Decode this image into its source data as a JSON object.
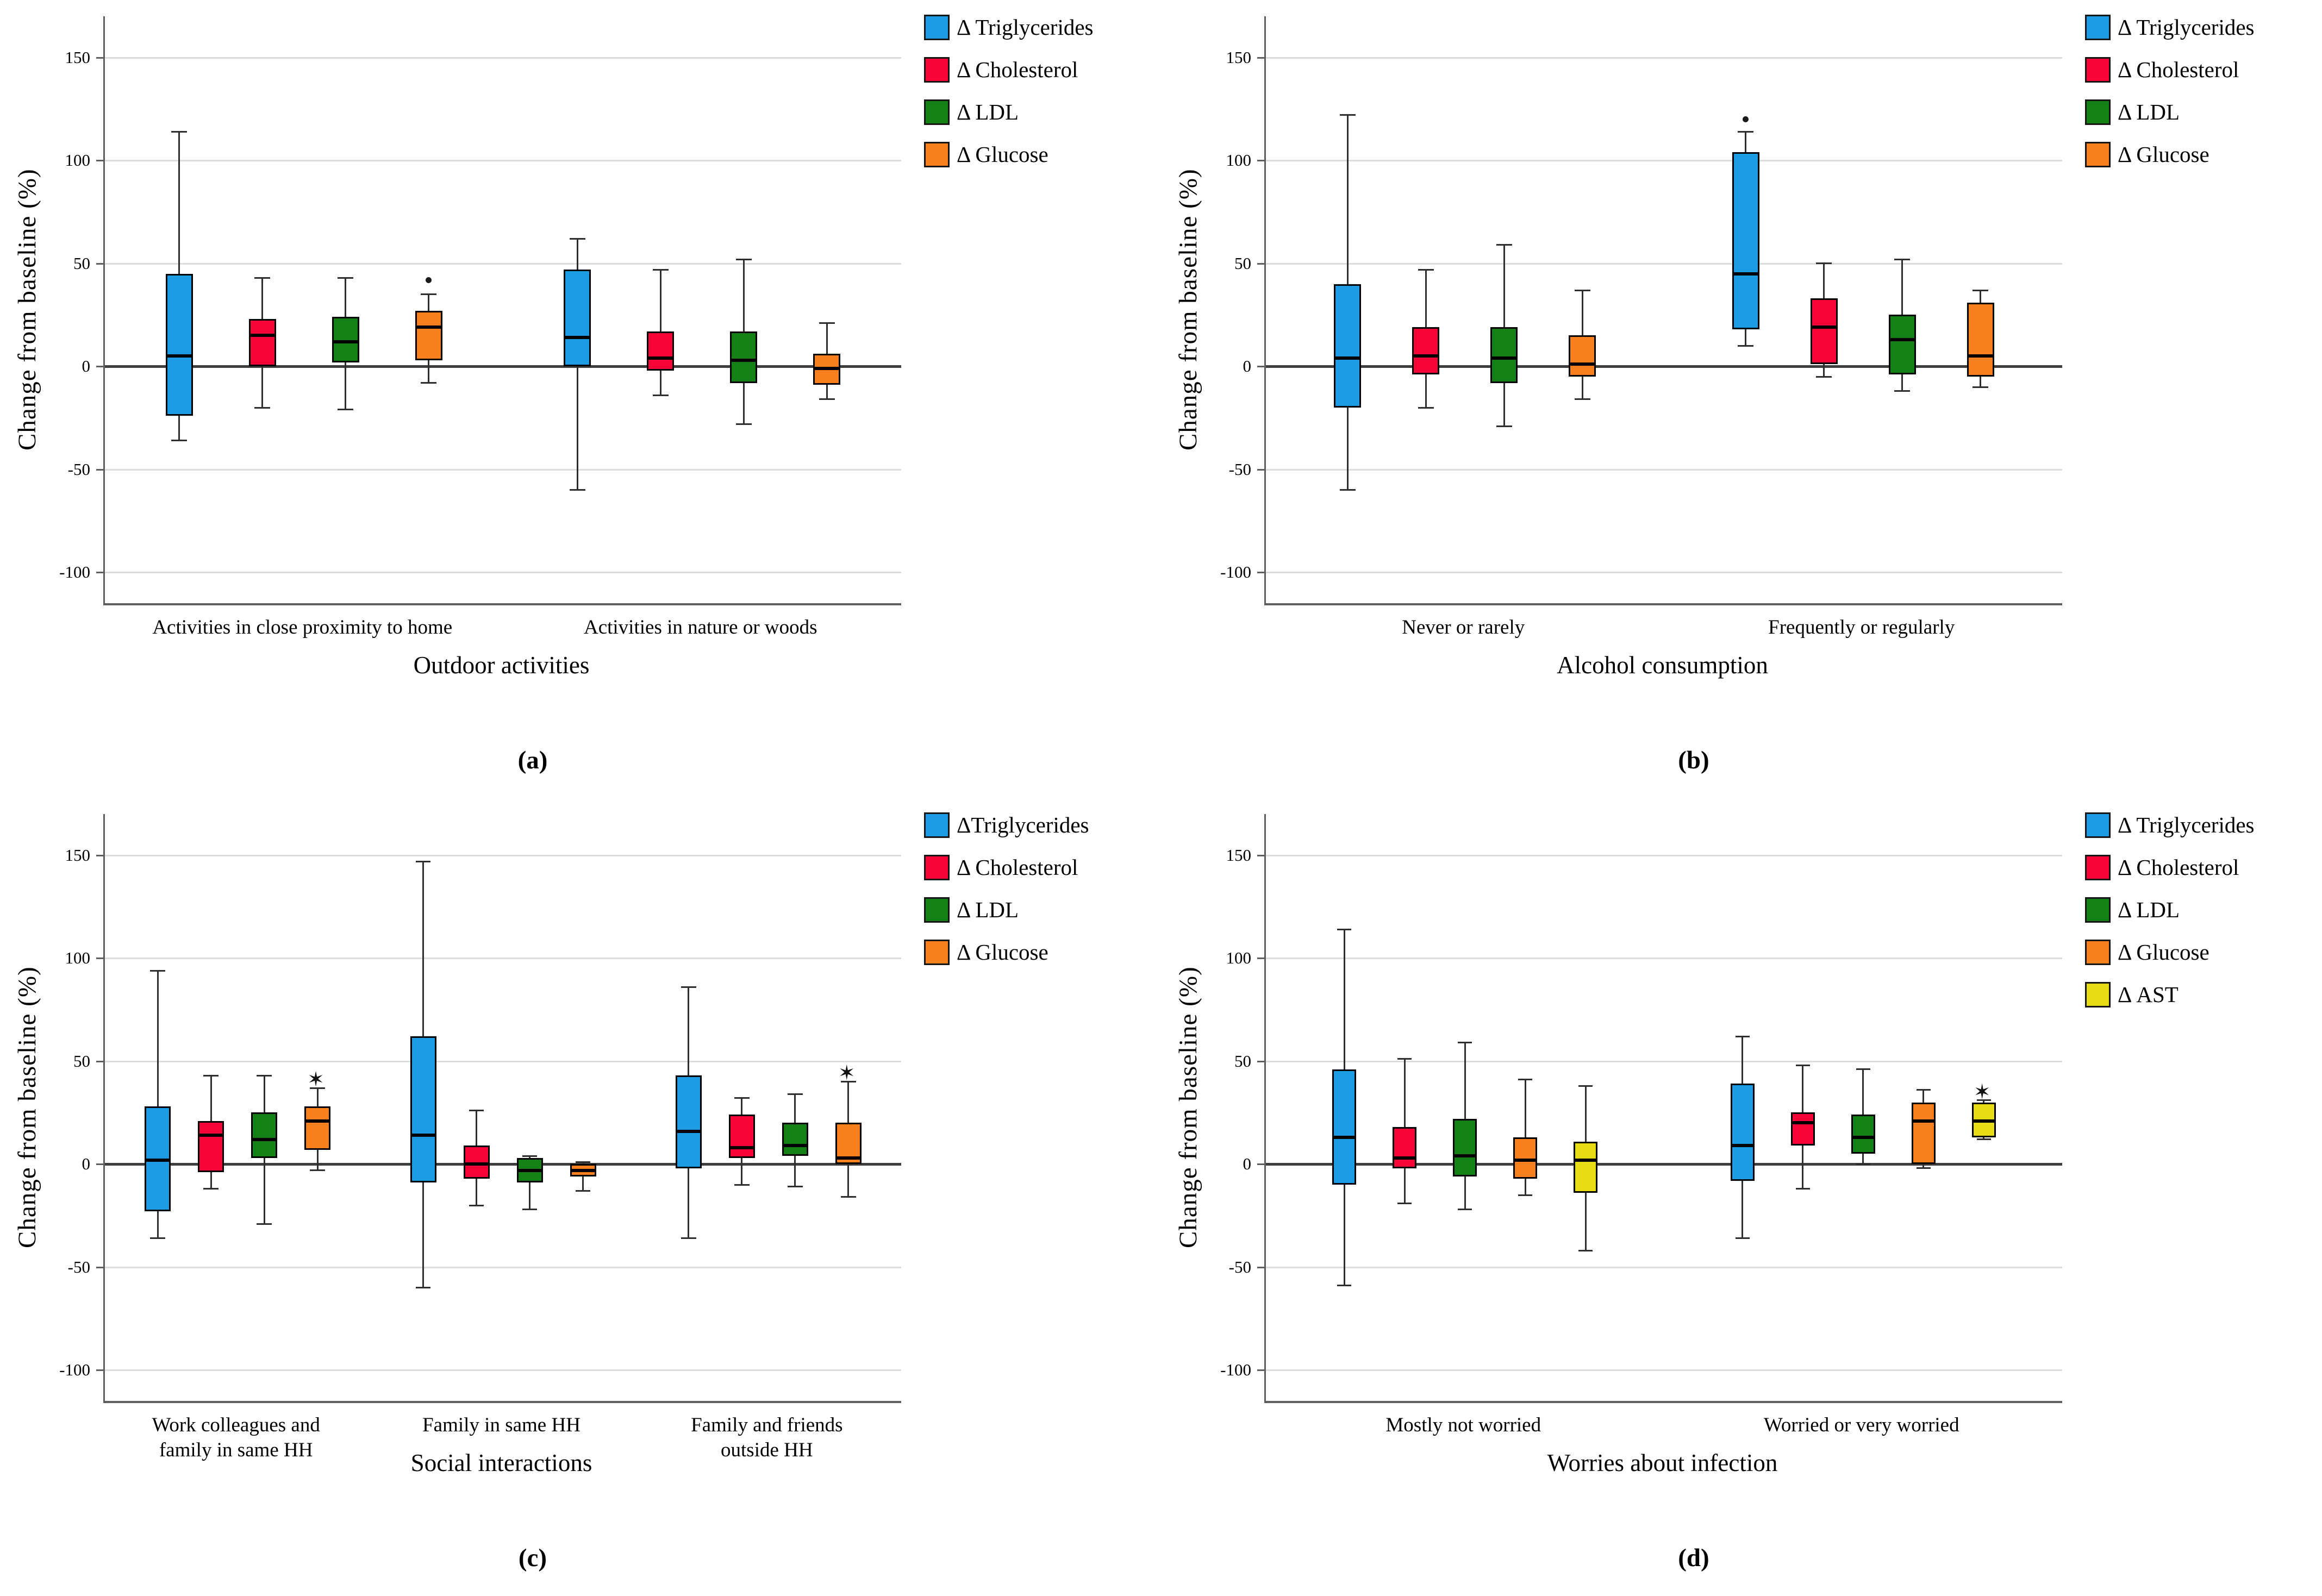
{
  "figure": {
    "background_color": "#ffffff",
    "baseline_color": "#3e3e3e",
    "gridline_color": "#dcdcdc"
  },
  "chart_data": [
    {
      "id": "a",
      "type": "boxplot",
      "caption": "(a)",
      "xlabel": "Outdoor activities",
      "ylabel": "Change from baseline (%)",
      "yticks": [
        150,
        100,
        50,
        0,
        -50,
        -100
      ],
      "ylim": [
        -115,
        170
      ],
      "grid": true,
      "legend_position": "right",
      "categories": [
        "Activities in close proximity to home",
        "Activities in nature or woods"
      ],
      "series": [
        {
          "name": "Δ Triglycerides",
          "key": "triglycerides",
          "color": "#1d9ce5",
          "boxes": [
            {
              "low": -36,
              "q1": -24,
              "median": 5,
              "q3": 45,
              "high": 114
            },
            {
              "low": -60,
              "q1": 0,
              "median": 14,
              "q3": 47,
              "high": 62
            }
          ]
        },
        {
          "name": "Δ Cholesterol",
          "key": "cholesterol",
          "color": "#f80538",
          "boxes": [
            {
              "low": -20,
              "q1": 0,
              "median": 15,
              "q3": 23,
              "high": 43
            },
            {
              "low": -14,
              "q1": -2,
              "median": 4,
              "q3": 17,
              "high": 47
            }
          ]
        },
        {
          "name": "Δ LDL",
          "key": "ldl",
          "color": "#158015",
          "boxes": [
            {
              "low": -21,
              "q1": 2,
              "median": 12,
              "q3": 24,
              "high": 43
            },
            {
              "low": -28,
              "q1": -8,
              "median": 3,
              "q3": 17,
              "high": 52
            }
          ]
        },
        {
          "name": "Δ Glucose",
          "key": "glucose",
          "color": "#f8801e",
          "boxes": [
            {
              "low": -8,
              "q1": 3,
              "median": 19,
              "q3": 27,
              "high": 35,
              "outliers": [
                {
                  "value": 42,
                  "marker": "dot"
                }
              ]
            },
            {
              "low": -16,
              "q1": -9,
              "median": -1,
              "q3": 6,
              "high": 21
            }
          ]
        }
      ]
    },
    {
      "id": "b",
      "type": "boxplot",
      "caption": "(b)",
      "xlabel": "Alcohol consumption",
      "ylabel": "Change from baseline (%)",
      "yticks": [
        150,
        100,
        50,
        0,
        -50,
        -100
      ],
      "ylim": [
        -115,
        170
      ],
      "grid": true,
      "legend_position": "right",
      "categories": [
        "Never or rarely",
        "Frequently or regularly"
      ],
      "series": [
        {
          "name": "Δ Triglycerides",
          "key": "triglycerides",
          "color": "#1d9ce5",
          "boxes": [
            {
              "low": -60,
              "q1": -20,
              "median": 4,
              "q3": 40,
              "high": 122
            },
            {
              "low": 10,
              "q1": 18,
              "median": 45,
              "q3": 104,
              "high": 114,
              "outliers": [
                {
                  "value": 120,
                  "marker": "dot"
                }
              ]
            }
          ]
        },
        {
          "name": "Δ Cholesterol",
          "key": "cholesterol",
          "color": "#f80538",
          "boxes": [
            {
              "low": -20,
              "q1": -4,
              "median": 5,
              "q3": 19,
              "high": 47
            },
            {
              "low": -5,
              "q1": 1,
              "median": 19,
              "q3": 33,
              "high": 50
            }
          ]
        },
        {
          "name": "Δ LDL",
          "key": "ldl",
          "color": "#158015",
          "boxes": [
            {
              "low": -29,
              "q1": -8,
              "median": 4,
              "q3": 19,
              "high": 59
            },
            {
              "low": -12,
              "q1": -4,
              "median": 13,
              "q3": 25,
              "high": 52
            }
          ]
        },
        {
          "name": "Δ Glucose",
          "key": "glucose",
          "color": "#f8801e",
          "boxes": [
            {
              "low": -16,
              "q1": -5,
              "median": 1,
              "q3": 15,
              "high": 37
            },
            {
              "low": -10,
              "q1": -5,
              "median": 5,
              "q3": 31,
              "high": 37
            }
          ]
        }
      ]
    },
    {
      "id": "c",
      "type": "boxplot",
      "caption": "(c)",
      "xlabel": "Social interactions",
      "ylabel": "Change from baseline (%)",
      "yticks": [
        150,
        100,
        50,
        0,
        -50,
        -100
      ],
      "ylim": [
        -115,
        170
      ],
      "grid": true,
      "legend_position": "right",
      "categories": [
        "Work colleagues and\nfamily in same HH",
        "Family in same HH",
        "Family and friends\noutside HH"
      ],
      "series": [
        {
          "name": "ΔTriglycerides",
          "key": "triglycerides",
          "color": "#1d9ce5",
          "boxes": [
            {
              "low": -36,
              "q1": -23,
              "median": 2,
              "q3": 28,
              "high": 94
            },
            {
              "low": -60,
              "q1": -9,
              "median": 14,
              "q3": 62,
              "high": 147
            },
            {
              "low": -36,
              "q1": -2,
              "median": 16,
              "q3": 43,
              "high": 86
            }
          ]
        },
        {
          "name": "Δ Cholesterol",
          "key": "cholesterol",
          "color": "#f80538",
          "boxes": [
            {
              "low": -12,
              "q1": -4,
              "median": 14,
              "q3": 21,
              "high": 43
            },
            {
              "low": -20,
              "q1": -7,
              "median": 0,
              "q3": 9,
              "high": 26
            },
            {
              "low": -10,
              "q1": 3,
              "median": 8,
              "q3": 24,
              "high": 32
            }
          ]
        },
        {
          "name": "Δ LDL",
          "key": "ldl",
          "color": "#158015",
          "boxes": [
            {
              "low": -29,
              "q1": 3,
              "median": 12,
              "q3": 25,
              "high": 43
            },
            {
              "low": -22,
              "q1": -9,
              "median": -3,
              "q3": 3,
              "high": 4
            },
            {
              "low": -11,
              "q1": 4,
              "median": 9,
              "q3": 20,
              "high": 34
            }
          ]
        },
        {
          "name": "Δ Glucose",
          "key": "glucose",
          "color": "#f8801e",
          "boxes": [
            {
              "low": -3,
              "q1": 7,
              "median": 21,
              "q3": 28,
              "high": 37,
              "outliers": [
                {
                  "value": 41,
                  "marker": "star"
                }
              ]
            },
            {
              "low": -13,
              "q1": -6,
              "median": -3,
              "q3": 0,
              "high": 1
            },
            {
              "low": -16,
              "q1": 0,
              "median": 3,
              "q3": 20,
              "high": 40,
              "outliers": [
                {
                  "value": 44,
                  "marker": "star"
                }
              ]
            }
          ]
        }
      ]
    },
    {
      "id": "d",
      "type": "boxplot",
      "caption": "(d)",
      "xlabel": "Worries about infection",
      "ylabel": "Change from baseline (%)",
      "yticks": [
        150,
        100,
        50,
        0,
        -50,
        -100
      ],
      "ylim": [
        -115,
        170
      ],
      "grid": true,
      "legend_position": "right",
      "categories": [
        "Mostly not worried",
        "Worried or very worried"
      ],
      "series": [
        {
          "name": "Δ Triglycerides",
          "key": "triglycerides",
          "color": "#1d9ce5",
          "boxes": [
            {
              "low": -59,
              "q1": -10,
              "median": 13,
              "q3": 46,
              "high": 114
            },
            {
              "low": -36,
              "q1": -8,
              "median": 9,
              "q3": 39,
              "high": 62
            }
          ]
        },
        {
          "name": "Δ Cholesterol",
          "key": "cholesterol",
          "color": "#f80538",
          "boxes": [
            {
              "low": -19,
              "q1": -2,
              "median": 3,
              "q3": 18,
              "high": 51
            },
            {
              "low": -12,
              "q1": 9,
              "median": 20,
              "q3": 25,
              "high": 48
            }
          ]
        },
        {
          "name": "Δ LDL",
          "key": "ldl",
          "color": "#158015",
          "boxes": [
            {
              "low": -22,
              "q1": -6,
              "median": 4,
              "q3": 22,
              "high": 59
            },
            {
              "low": 0,
              "q1": 5,
              "median": 13,
              "q3": 24,
              "high": 46
            }
          ]
        },
        {
          "name": "Δ Glucose",
          "key": "glucose",
          "color": "#f8801e",
          "boxes": [
            {
              "low": -15,
              "q1": -7,
              "median": 2,
              "q3": 13,
              "high": 41
            },
            {
              "low": -2,
              "q1": 0,
              "median": 21,
              "q3": 30,
              "high": 36
            }
          ]
        },
        {
          "name": "Δ AST",
          "key": "ast",
          "color": "#e7dd16",
          "boxes": [
            {
              "low": -42,
              "q1": -14,
              "median": 2,
              "q3": 11,
              "high": 38
            },
            {
              "low": 12,
              "q1": 13,
              "median": 21,
              "q3": 30,
              "high": 31,
              "outliers": [
                {
                  "value": 35,
                  "marker": "star"
                }
              ]
            }
          ]
        }
      ]
    }
  ]
}
